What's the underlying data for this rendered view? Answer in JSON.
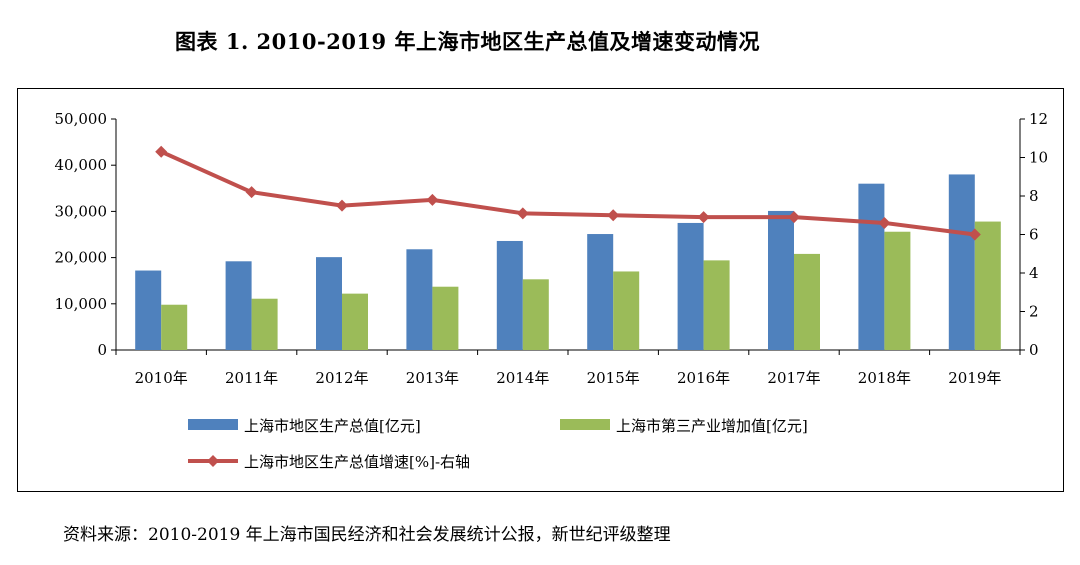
{
  "title": "图表 1. 2010-2019 年上海市地区生产总值及增速变动情况",
  "source_note": "资料来源：2010-2019 年上海市国民经济和社会发展统计公报，新世纪评级整理",
  "chart_data": {
    "type": "bar",
    "categories": [
      "2010年",
      "2011年",
      "2012年",
      "2013年",
      "2014年",
      "2015年",
      "2016年",
      "2017年",
      "2018年",
      "2019年"
    ],
    "series": [
      {
        "name": "上海市地区生产总值[亿元]",
        "kind": "bar",
        "axis": "left",
        "color": "#4f81bd",
        "values": [
          17200,
          19200,
          20100,
          21800,
          23600,
          25100,
          27500,
          30100,
          36000,
          38000
        ]
      },
      {
        "name": "上海市第三产业增加值[亿元]",
        "kind": "bar",
        "axis": "left",
        "color": "#9bbb59",
        "values": [
          9800,
          11100,
          12200,
          13700,
          15300,
          17000,
          19400,
          20800,
          25600,
          27800
        ]
      },
      {
        "name": "上海市地区生产总值增速[%]-右轴",
        "kind": "line",
        "axis": "right",
        "color": "#c0504d",
        "values": [
          10.3,
          8.2,
          7.5,
          7.8,
          7.1,
          7.0,
          6.9,
          6.9,
          6.6,
          6.0
        ]
      }
    ],
    "y_left": {
      "ylim": [
        0,
        50000
      ],
      "ticks": [
        "0",
        "10,000",
        "20,000",
        "30,000",
        "40,000",
        "50,000"
      ],
      "tick_values": [
        0,
        10000,
        20000,
        30000,
        40000,
        50000
      ]
    },
    "y_right": {
      "ylim": [
        0,
        12
      ],
      "ticks": [
        "0",
        "2",
        "4",
        "6",
        "8",
        "10",
        "12"
      ],
      "tick_values": [
        0,
        2,
        4,
        6,
        8,
        10,
        12
      ]
    },
    "grid": false,
    "legend_position": "bottom"
  }
}
